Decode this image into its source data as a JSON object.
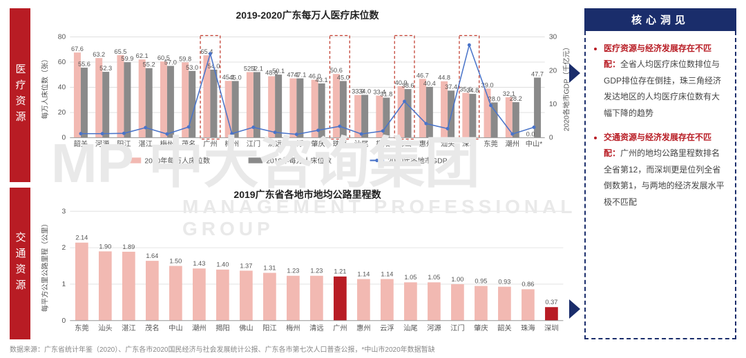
{
  "top_chart": {
    "type": "bar+line",
    "title": "2019-2020广东每万人医疗床位数",
    "y1_label": "每万人床位数（张）",
    "y2_label": "2020各地市GDP（千亿元）",
    "y1_lim": [
      0,
      80
    ],
    "y1_tick_step": 20,
    "y2_lim": [
      0,
      30
    ],
    "y2_tick_step": 10,
    "categories": [
      "韶关",
      "河源",
      "阳江",
      "湛江",
      "梅州",
      "茂名",
      "广州",
      "梅州",
      "江门",
      "清远",
      "云浮",
      "肇庆",
      "珠海",
      "汕尾",
      "揭阳",
      "佛山",
      "惠州",
      "汕头",
      "深圳",
      "东莞",
      "潮州",
      "中山*"
    ],
    "series_2020_beds": [
      67.6,
      63.2,
      65.5,
      62.1,
      60.5,
      59.8,
      65.4,
      45.1,
      52.1,
      48.8,
      47.1,
      46.0,
      50.6,
      33.9,
      33.4,
      40.9,
      46.7,
      44.8,
      35.6,
      39.0,
      32.1,
      0.0
    ],
    "series_2019_beds": [
      55.6,
      52.3,
      59.9,
      55.2,
      57.0,
      53.0,
      54.0,
      45.0,
      52.1,
      50.1,
      47.1,
      43.1,
      45.0,
      34.0,
      31.8,
      38.6,
      40.4,
      37.4,
      34.8,
      28.0,
      28.2,
      47.7
    ],
    "series_gdp": [
      1.2,
      1.2,
      1.3,
      3.0,
      1.1,
      3.2,
      25.0,
      1.2,
      3.1,
      1.6,
      1.0,
      2.2,
      3.4,
      1.1,
      2.0,
      10.8,
      4.2,
      2.7,
      27.6,
      9.6,
      1.1,
      3.1
    ],
    "bar_colors": {
      "beds2020": "#f2b9b2",
      "beds2019": "#8a8a8a"
    },
    "line_color": "#4a74c9",
    "highlight_indices": [
      6,
      12,
      15,
      18
    ],
    "highlight_color": "#c0392b",
    "grid_color": "#e0e0e0",
    "legend": [
      {
        "label": "2020年每万人床位数",
        "swatch": "#f2b9b2",
        "kind": "bar"
      },
      {
        "label": "2019年每万人床位数",
        "swatch": "#8a8a8a",
        "kind": "bar"
      },
      {
        "label": "2020年各地市GDP",
        "swatch": "#4a74c9",
        "kind": "line"
      }
    ],
    "label_fontsize": 10
  },
  "bottom_chart": {
    "type": "bar",
    "title": "2019广东省各地市地均公路里程数",
    "y_label": "每平方公里公路里程（公里）",
    "y_lim": [
      0,
      3
    ],
    "y_tick_step": 1,
    "categories": [
      "东莞",
      "汕头",
      "湛江",
      "茂名",
      "中山",
      "潮州",
      "揭阳",
      "佛山",
      "阳江",
      "梅州",
      "清远",
      "广州",
      "惠州",
      "云浮",
      "汕尾",
      "河源",
      "江门",
      "肇庆",
      "韶关",
      "珠海",
      "深圳"
    ],
    "values": [
      2.14,
      1.9,
      1.89,
      1.64,
      1.5,
      1.43,
      1.4,
      1.37,
      1.31,
      1.23,
      1.23,
      1.21,
      1.14,
      1.14,
      1.05,
      1.05,
      1.0,
      0.95,
      0.93,
      0.86,
      0.37
    ],
    "bar_color": "#f2b9b2",
    "highlight_indices": [
      11,
      20
    ],
    "highlight_color": "#b81c24",
    "grid_color": "#e5e5e5",
    "label_fontsize": 10
  },
  "side_tabs": {
    "top": "医疗资源",
    "bottom": "交通资源"
  },
  "insight": {
    "heading": "核心洞见",
    "items": [
      {
        "highlight": "医疗资源与经济发展存在不匹配：",
        "rest": "全省人均医疗床位数排位与GDP排位存在倒挂，珠三角经济发达地区的人均医疗床位数有大幅下降的趋势"
      },
      {
        "highlight": "交通资源与经济发展存在不匹配：",
        "rest": "广州的地均公路里程数排名全省第12，而深圳更是位列全省倒数第1，与两地的经济发展水平极不匹配"
      }
    ]
  },
  "footer": "数据来源：广东省统计年鉴（2020）、广东各市2020国民经济与社会发展统计公报、广东各市第七次人口普查公报，*中山市2020年数据暂缺",
  "watermark": {
    "big": "MP 中大咨询集团",
    "small": "MANAGEMENT PROFESSIONAL GROUP"
  },
  "colors": {
    "navy": "#1a2d6b",
    "red": "#b81c24"
  }
}
